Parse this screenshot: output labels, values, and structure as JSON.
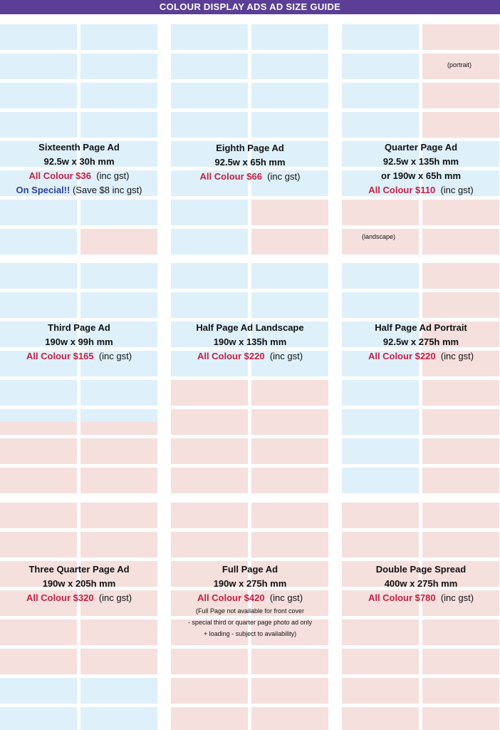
{
  "header": {
    "title": "COLOUR DISPLAY ADS AD SIZE GUIDE"
  },
  "colors": {
    "header_bg": "#5b3e96",
    "cell_blue": "#def0fa",
    "cell_pink": "#f5e0dd",
    "price_red": "#c62045",
    "special_blue": "#2f3fa0"
  },
  "ads": [
    {
      "title": "Sixteenth Page Ad",
      "size": "92.5w x 30h mm",
      "price": "All Colour $36",
      "gst": "(inc gst)",
      "special": "On Special!!",
      "special_note": "(Save $8 inc gst)"
    },
    {
      "title": "Eighth Page Ad",
      "size": "92.5w x 65h mm",
      "price": "All Colour $66",
      "gst": "(inc gst)"
    },
    {
      "title": "Quarter Page Ad",
      "size": "92.5w x 135h mm",
      "size2": "or 190w x 65h mm",
      "price": "All Colour $110",
      "gst": "(inc gst)",
      "tag_top": "(portrait)",
      "tag_bottom": "(landscape)"
    },
    {
      "title": "Third Page Ad",
      "size": "190w x 99h mm",
      "price": "All Colour $165",
      "gst": "(inc gst)"
    },
    {
      "title": "Half Page Ad Landscape",
      "size": "190w x 135h mm",
      "price": "All Colour $220",
      "gst": "(inc gst)"
    },
    {
      "title": "Half Page Ad Portrait",
      "size": "92.5w x 275h mm",
      "price": "All Colour $220",
      "gst": "(inc gst)"
    },
    {
      "title": "Three Quarter Page Ad",
      "size": "190w x 205h mm",
      "price": "All Colour $320",
      "gst": "(inc gst)"
    },
    {
      "title": "Full Page Ad",
      "size": "190w x 275h mm",
      "price": "All Colour $420",
      "gst": "(inc gst)",
      "notes": [
        "(Full Page not available for front cover",
        "- special third or quarter page photo ad only",
        "+ loading - subject to availability)"
      ]
    },
    {
      "title": "Double Page Spread",
      "size": "400w x 275h mm",
      "price": "All Colour $780",
      "gst": "(inc gst)"
    }
  ]
}
